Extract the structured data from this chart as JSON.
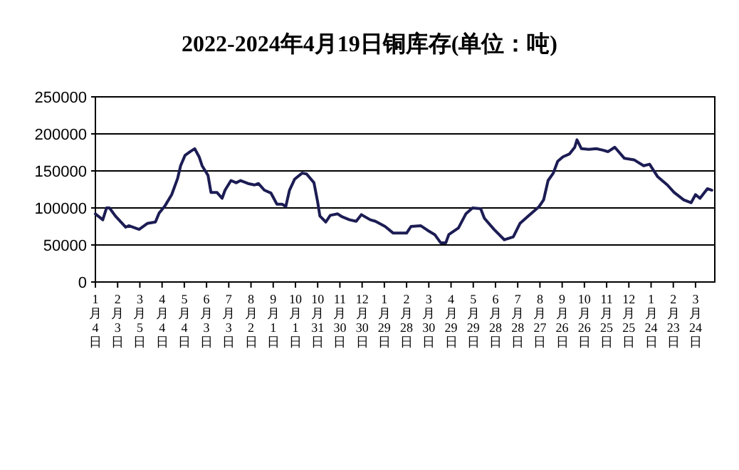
{
  "chart_data": {
    "type": "line",
    "title": "2022-2024年4月19日铜库存(单位：吨)",
    "x": [
      "2022-01-04",
      "2022-01-14",
      "2022-01-19",
      "2022-01-23",
      "2022-01-31",
      "2022-02-14",
      "2022-02-18",
      "2022-03-04",
      "2022-03-15",
      "2022-03-26",
      "2022-03-31",
      "2022-04-08",
      "2022-04-17",
      "2022-04-25",
      "2022-04-29",
      "2022-05-05",
      "2022-05-12",
      "2022-05-18",
      "2022-05-24",
      "2022-05-28",
      "2022-06-05",
      "2022-06-09",
      "2022-06-17",
      "2022-06-24",
      "2022-06-28",
      "2022-07-06",
      "2022-07-13",
      "2022-07-19",
      "2022-07-29",
      "2022-08-07",
      "2022-08-12",
      "2022-08-20",
      "2022-08-29",
      "2022-09-06",
      "2022-09-13",
      "2022-09-18",
      "2022-09-23",
      "2022-09-30",
      "2022-10-10",
      "2022-10-16",
      "2022-10-26",
      "2022-10-31",
      "2022-11-03",
      "2022-11-11",
      "2022-11-17",
      "2022-11-27",
      "2022-12-03",
      "2022-12-13",
      "2022-12-22",
      "2022-12-29",
      "2023-01-10",
      "2023-01-17",
      "2023-01-30",
      "2023-02-10",
      "2023-02-28",
      "2023-03-06",
      "2023-03-19",
      "2023-03-28",
      "2023-04-07",
      "2023-04-15",
      "2023-04-22",
      "2023-04-26",
      "2023-05-09",
      "2023-05-19",
      "2023-05-28",
      "2023-06-08",
      "2023-06-13",
      "2023-06-26",
      "2023-07-10",
      "2023-07-22",
      "2023-07-31",
      "2023-08-10",
      "2023-08-26",
      "2023-09-01",
      "2023-09-07",
      "2023-09-14",
      "2023-09-20",
      "2023-09-27",
      "2023-10-06",
      "2023-10-13",
      "2023-10-16",
      "2023-10-22",
      "2023-11-01",
      "2023-11-11",
      "2023-11-20",
      "2023-11-27",
      "2023-12-06",
      "2023-12-19",
      "2024-01-01",
      "2024-01-14",
      "2024-01-22",
      "2024-02-02",
      "2024-02-15",
      "2024-02-24",
      "2024-03-08",
      "2024-03-18",
      "2024-03-24",
      "2024-03-30",
      "2024-04-09",
      "2024-04-15"
    ],
    "series": [
      {
        "color": "#1c1c54",
        "values": [
          92000,
          84000,
          100000,
          100000,
          89000,
          74000,
          76000,
          71000,
          79000,
          81000,
          93000,
          103000,
          118000,
          140000,
          157000,
          171000,
          176000,
          180000,
          169000,
          157000,
          144000,
          121000,
          121000,
          113000,
          124000,
          137000,
          134000,
          137000,
          133000,
          131000,
          133000,
          124000,
          120000,
          105000,
          105000,
          102000,
          124000,
          139000,
          147000,
          146000,
          134000,
          108000,
          89000,
          81000,
          90000,
          92000,
          88000,
          84000,
          82000,
          91000,
          84000,
          82000,
          75000,
          66000,
          66000,
          75000,
          76000,
          70000,
          64000,
          53000,
          53000,
          64000,
          73000,
          92000,
          100000,
          99000,
          86000,
          71000,
          57000,
          61000,
          79000,
          88000,
          102000,
          111000,
          137000,
          147000,
          163000,
          169000,
          173000,
          182000,
          192000,
          180000,
          179000,
          180000,
          178000,
          176000,
          182000,
          167000,
          165000,
          157000,
          159000,
          142000,
          131000,
          121000,
          111000,
          107000,
          118000,
          113000,
          126000,
          124000
        ]
      }
    ],
    "xlim": [
      "2022-01-04",
      "2024-04-19"
    ],
    "xticks": [
      {
        "value": "2022-01-04",
        "label": "1月4日"
      },
      {
        "value": "2022-02-03",
        "label": "2月3日"
      },
      {
        "value": "2022-03-05",
        "label": "3月5日"
      },
      {
        "value": "2022-04-04",
        "label": "4月4日"
      },
      {
        "value": "2022-05-04",
        "label": "5月4日"
      },
      {
        "value": "2022-06-03",
        "label": "6月3日"
      },
      {
        "value": "2022-07-03",
        "label": "7月3日"
      },
      {
        "value": "2022-08-02",
        "label": "8月2日"
      },
      {
        "value": "2022-09-01",
        "label": "9月1日"
      },
      {
        "value": "2022-10-01",
        "label": "10月1日"
      },
      {
        "value": "2022-10-31",
        "label": "10月31日"
      },
      {
        "value": "2022-11-30",
        "label": "11月30日"
      },
      {
        "value": "2022-12-30",
        "label": "12月30日"
      },
      {
        "value": "2023-01-29",
        "label": "1月29日"
      },
      {
        "value": "2023-02-28",
        "label": "2月28日"
      },
      {
        "value": "2023-03-30",
        "label": "3月30日"
      },
      {
        "value": "2023-04-29",
        "label": "4月29日"
      },
      {
        "value": "2023-05-29",
        "label": "5月29日"
      },
      {
        "value": "2023-06-28",
        "label": "6月28日"
      },
      {
        "value": "2023-07-28",
        "label": "7月28日"
      },
      {
        "value": "2023-08-27",
        "label": "8月27日"
      },
      {
        "value": "2023-09-26",
        "label": "9月26日"
      },
      {
        "value": "2023-10-26",
        "label": "10月26日"
      },
      {
        "value": "2023-11-25",
        "label": "11月25日"
      },
      {
        "value": "2023-12-25",
        "label": "12月25日"
      },
      {
        "value": "2024-01-24",
        "label": "1月24日"
      },
      {
        "value": "2024-02-23",
        "label": "2月23日"
      },
      {
        "value": "2024-03-24",
        "label": "3月24日"
      }
    ],
    "ylim": [
      0,
      250000
    ],
    "yticks": [
      0,
      50000,
      100000,
      150000,
      200000,
      250000
    ],
    "grid": "y"
  }
}
